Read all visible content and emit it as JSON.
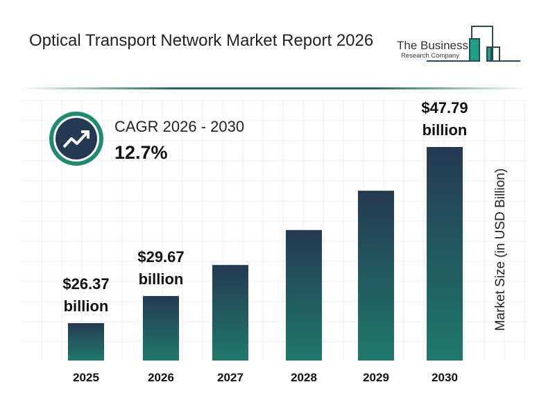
{
  "title": "Optical Transport Network Market Report 2026",
  "logo": {
    "line1": "The Business",
    "line2": "Research Company"
  },
  "cagr": {
    "label": "CAGR 2026 - 2030",
    "value": "12.7%",
    "icon": "trend-up-arrow-icon"
  },
  "colors": {
    "bar_top": "#253a52",
    "bar_bottom": "#1f7a6a",
    "accent": "#1f8a70"
  },
  "chart_data": {
    "type": "bar",
    "title": "",
    "xlabel": "",
    "ylabel": "Market Size (in USD Billion)",
    "categories": [
      "2025",
      "2026",
      "2027",
      "2028",
      "2029",
      "2030"
    ],
    "values": [
      26.37,
      29.67,
      33.44,
      37.69,
      42.47,
      47.79
    ],
    "data_labels": [
      {
        "index": 0,
        "line1": "$26.37",
        "line2": "billion"
      },
      {
        "index": 1,
        "line1": "$29.67",
        "line2": "billion"
      },
      {
        "index": 5,
        "line1": "$47.79",
        "line2": "billion"
      }
    ],
    "grid": true,
    "legend": "none"
  }
}
